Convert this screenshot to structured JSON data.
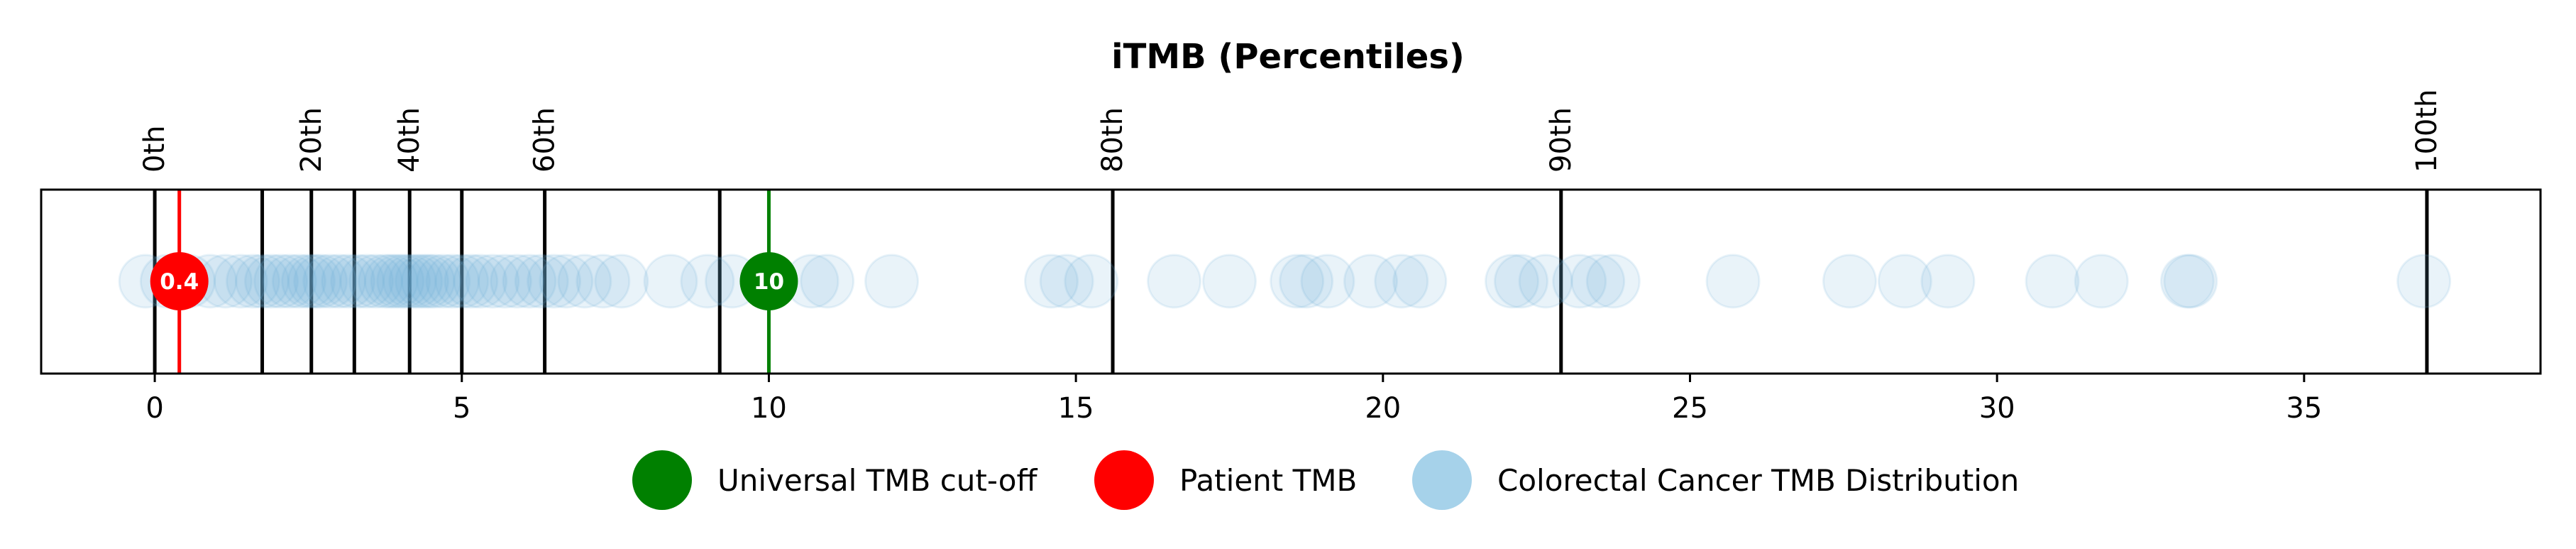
{
  "chart_data": {
    "type": "scatter",
    "title": "iTMB (Percentiles)",
    "xlim": [
      -1.85,
      38.85
    ],
    "xticks": [
      0,
      5,
      10,
      15,
      20,
      25,
      30,
      35
    ],
    "xtick_labels": [
      "0",
      "5",
      "10",
      "15",
      "20",
      "25",
      "30",
      "35"
    ],
    "grid": false,
    "percentile_lines": [
      {
        "value": 0.0,
        "label": "0th"
      },
      {
        "value": 1.75,
        "label": ""
      },
      {
        "value": 2.55,
        "label": "20th"
      },
      {
        "value": 3.25,
        "label": ""
      },
      {
        "value": 4.15,
        "label": "40th"
      },
      {
        "value": 5.0,
        "label": ""
      },
      {
        "value": 6.35,
        "label": "60th"
      },
      {
        "value": 9.2,
        "label": ""
      },
      {
        "value": 15.6,
        "label": "80th"
      },
      {
        "value": 22.9,
        "label": "90th"
      },
      {
        "value": 37.0,
        "label": "100th"
      }
    ],
    "cutoff": {
      "value": 10,
      "label": "10",
      "color": "#008000"
    },
    "patient": {
      "value": 0.4,
      "label": "0.4",
      "color": "#ff0000"
    },
    "distribution": {
      "color": "#6baed6",
      "values": [
        -0.15,
        0.2,
        0.55,
        0.9,
        1.15,
        1.4,
        1.6,
        1.75,
        1.9,
        2.05,
        2.2,
        2.35,
        2.5,
        2.6,
        2.7,
        2.85,
        3.0,
        3.15,
        3.3,
        3.45,
        3.6,
        3.75,
        3.85,
        3.95,
        4.05,
        4.15,
        4.25,
        4.35,
        4.45,
        4.55,
        4.7,
        4.85,
        5.0,
        5.15,
        5.3,
        5.5,
        5.7,
        5.9,
        6.1,
        6.3,
        6.5,
        6.7,
        7.0,
        7.3,
        7.6,
        8.4,
        9.0,
        9.4,
        10.7,
        10.95,
        12.0,
        14.6,
        14.85,
        15.25,
        16.6,
        17.5,
        18.6,
        18.75,
        19.1,
        19.8,
        20.3,
        20.6,
        22.1,
        22.25,
        22.65,
        23.2,
        23.5,
        23.75,
        25.7,
        27.6,
        28.5,
        29.2,
        30.9,
        31.7,
        33.1,
        33.15,
        36.95
      ]
    },
    "legend": {
      "placement": "bottom-center",
      "entries": [
        {
          "label": "Universal TMB cut-off",
          "color": "#008000"
        },
        {
          "label": "Patient TMB",
          "color": "#ff0000"
        },
        {
          "label": "Colorectal Cancer TMB Distribution",
          "color": "#a6d2ea"
        }
      ]
    }
  }
}
